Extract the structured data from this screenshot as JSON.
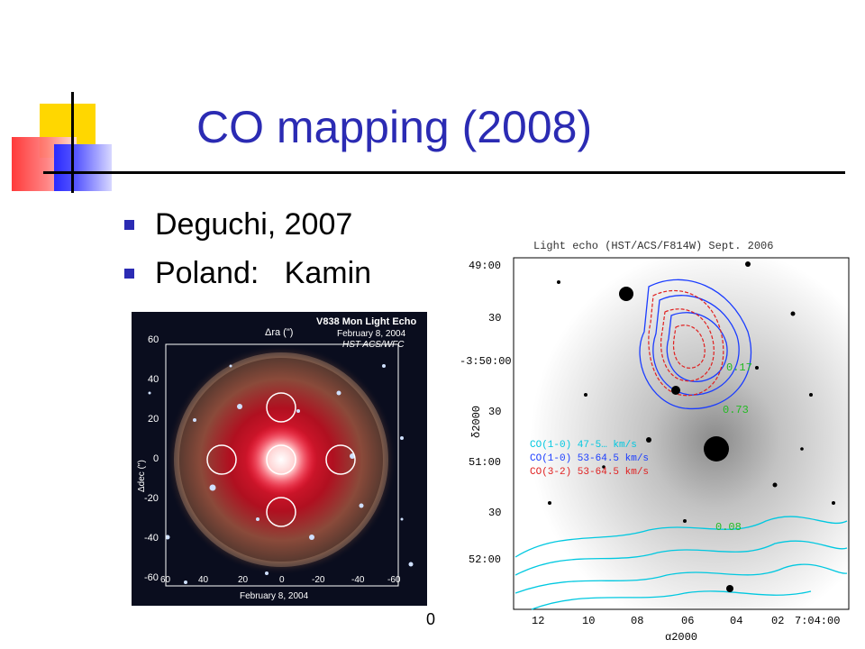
{
  "slide": {
    "title": "CO mapping (2008)",
    "bullets": [
      {
        "text": "Deguchi, 2007"
      },
      {
        "text": "Poland:   Kamin"
      }
    ],
    "accent_color": "#2b2bb3"
  },
  "left_image": {
    "header_line1": "V838 Mon Light Echo",
    "header_line2": "February 8, 2004",
    "header_line3": "HST ACS/WFC",
    "top_axis_label": "Δra (\")",
    "left_axis_label": "Δdec (\")",
    "y_ticks": [
      "60",
      "40",
      "20",
      "0",
      "-20",
      "-40",
      "-60"
    ],
    "x_ticks": [
      "60",
      "40",
      "20",
      "0",
      "-20",
      "-40",
      "-60"
    ],
    "footer": "February 8, 2004"
  },
  "right_image": {
    "header": "Light echo (HST/ACS/F814W) Sept. 2006",
    "dec_ticks": [
      "49:00",
      "30",
      "-3:50:00",
      "30",
      "51:00",
      "30",
      "52:00"
    ],
    "ra_ticks": [
      "12",
      "10",
      "08",
      "06",
      "04",
      "02",
      "7:04:00"
    ],
    "y_axis_label": "δ2000",
    "x_axis_label": "α2000",
    "legend": [
      {
        "text": "CO(1-0) 47-5…  km/s",
        "color": "#00c8e0"
      },
      {
        "text": "CO(1-0) 53-64.5 km/s",
        "color": "#1a3cff"
      },
      {
        "text": "CO(3-2) 53-64.5 km/s",
        "color": "#e02020"
      }
    ],
    "annotations": [
      {
        "text": "0.17",
        "color": "#22bb22"
      },
      {
        "text": "0.73",
        "color": "#22bb22"
      },
      {
        "text": "0.08",
        "color": "#22bb22"
      }
    ]
  },
  "cut_text": "0"
}
